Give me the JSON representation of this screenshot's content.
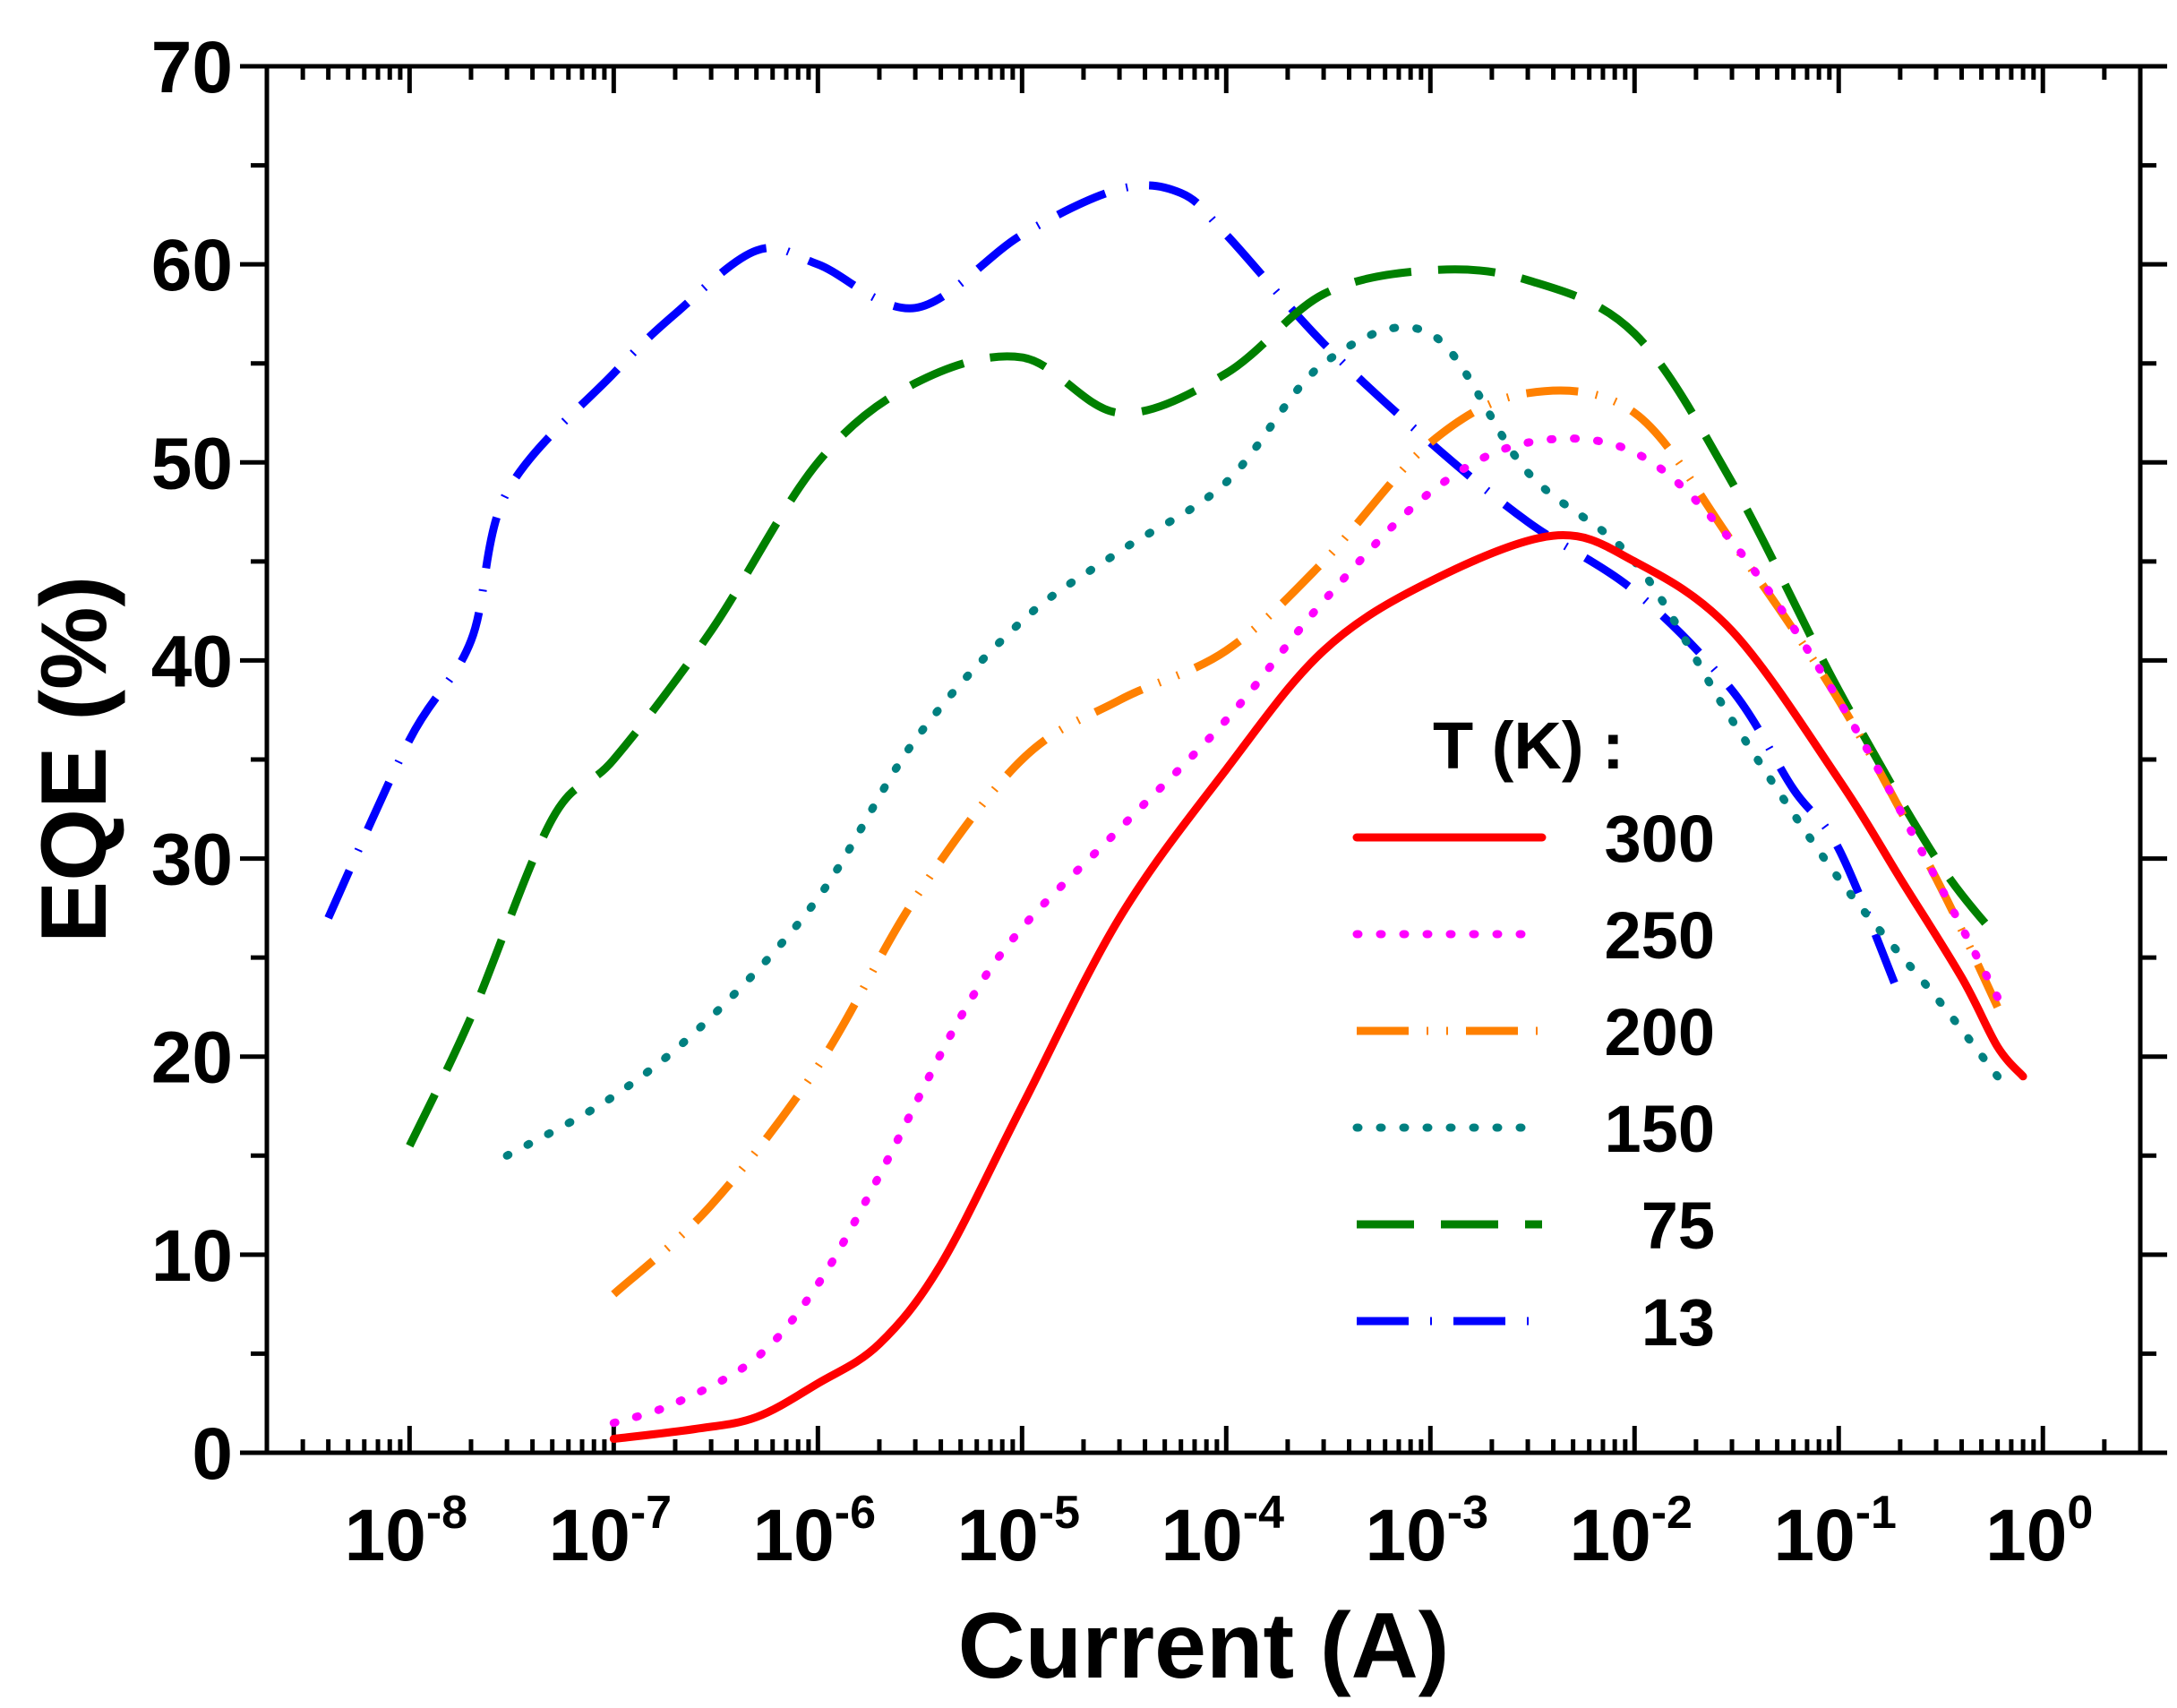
{
  "chart_data": {
    "type": "line",
    "xlabel": "Current (A)",
    "ylabel": "EQE (%)",
    "xscale": "log",
    "xlim": [
      2e-09,
      3.0
    ],
    "ylim": [
      0,
      70
    ],
    "x_ticks": [
      {
        "base": "10",
        "exp": "-8",
        "value": 1e-08
      },
      {
        "base": "10",
        "exp": "-7",
        "value": 1e-07
      },
      {
        "base": "10",
        "exp": "-6",
        "value": 1e-06
      },
      {
        "base": "10",
        "exp": "-5",
        "value": 1e-05
      },
      {
        "base": "10",
        "exp": "-4",
        "value": 0.0001
      },
      {
        "base": "10",
        "exp": "-3",
        "value": 0.001
      },
      {
        "base": "10",
        "exp": "-2",
        "value": 0.01
      },
      {
        "base": "10",
        "exp": "-1",
        "value": 0.1
      },
      {
        "base": "10",
        "exp": "0",
        "value": 1
      }
    ],
    "y_ticks": [
      "0",
      "10",
      "20",
      "30",
      "40",
      "50",
      "60",
      "70"
    ],
    "legend_title": "T (K) :",
    "legend_position": "right",
    "series": [
      {
        "name": "300",
        "color": "#ff0000",
        "style": "solid",
        "x": [
          1e-07,
          2.5e-07,
          5e-07,
          1e-06,
          2e-06,
          4e-06,
          1e-05,
          3e-05,
          0.0001,
          0.0003,
          0.001,
          0.004,
          0.01,
          0.03,
          0.1,
          0.2,
          0.4,
          0.6,
          0.8
        ],
        "y": [
          0.7,
          1.2,
          1.8,
          3.5,
          5.5,
          9.5,
          17.5,
          27,
          34.5,
          40.5,
          44,
          46.3,
          45,
          41.5,
          34,
          29,
          24,
          20.5,
          19
        ]
      },
      {
        "name": "250",
        "color": "#ff00ff",
        "style": "dot",
        "x": [
          1e-07,
          2e-07,
          5e-07,
          1e-06,
          2e-06,
          5e-06,
          1e-05,
          3e-05,
          0.0001,
          0.0003,
          0.001,
          0.003,
          0.01,
          0.03,
          0.1,
          0.3,
          0.6
        ],
        "y": [
          1.5,
          2.5,
          4.8,
          8.5,
          14,
          22,
          26.5,
          31.5,
          37,
          43,
          48.5,
          51,
          50.5,
          46,
          38,
          29,
          23
        ]
      },
      {
        "name": "200",
        "color": "#ff8000",
        "style": "dash-dot-dot",
        "x": [
          1e-07,
          3e-07,
          1e-06,
          3e-06,
          1e-05,
          3e-05,
          0.0001,
          0.0003,
          0.001,
          0.003,
          0.01,
          0.03,
          0.1,
          0.3,
          0.6
        ],
        "y": [
          8,
          12.5,
          19.5,
          28,
          35,
          38,
          40.5,
          45,
          51,
          53.5,
          52.5,
          46,
          38,
          29,
          22.5
        ]
      },
      {
        "name": "150",
        "color": "#008080",
        "style": "dot",
        "x": [
          3e-08,
          1e-07,
          3e-07,
          1e-06,
          3e-06,
          1e-05,
          3e-05,
          0.0001,
          0.0003,
          0.001,
          0.003,
          0.01,
          0.03,
          0.1,
          0.3,
          0.6
        ],
        "y": [
          15,
          18,
          22,
          28,
          36,
          42,
          45.5,
          49,
          55,
          56.5,
          49.5,
          45,
          37,
          29,
          23,
          19
        ]
      },
      {
        "name": "75",
        "color": "#008000",
        "style": "dash",
        "x": [
          1e-08,
          2e-08,
          5e-08,
          1e-07,
          3e-07,
          1e-06,
          3e-06,
          1e-05,
          3e-05,
          0.0001,
          0.0003,
          0.001,
          0.003,
          0.01,
          0.03,
          0.1,
          0.3,
          0.6
        ],
        "y": [
          15.5,
          22,
          32,
          35,
          41.5,
          50,
          54,
          55.3,
          52.5,
          54.5,
          58.5,
          59.7,
          59.2,
          56.5,
          49,
          38.5,
          30,
          26
        ]
      },
      {
        "name": "13",
        "color": "#0000ff",
        "style": "dash-dot",
        "x": [
          4e-09,
          1e-08,
          2e-08,
          3e-08,
          1e-07,
          2e-07,
          5e-07,
          1e-06,
          3e-06,
          1e-05,
          3e-05,
          6e-05,
          0.0001,
          0.0003,
          0.001,
          0.003,
          0.01,
          0.03,
          0.06,
          0.1,
          0.2
        ],
        "y": [
          27,
          36,
          41,
          48.5,
          54.5,
          57.5,
          60.7,
          60,
          57.8,
          61.5,
          63.8,
          63.6,
          61.5,
          56,
          51,
          47,
          43.5,
          38.5,
          33.5,
          30.5,
          23
        ]
      }
    ]
  }
}
